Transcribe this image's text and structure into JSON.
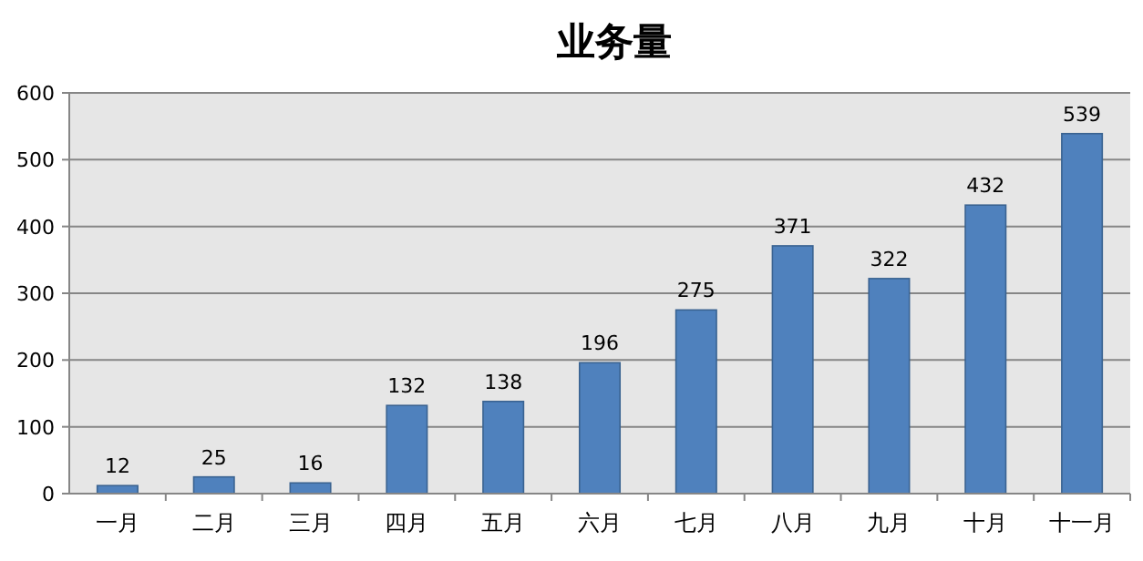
{
  "chart_data": {
    "type": "bar",
    "title": "业务量",
    "categories": [
      "一月",
      "二月",
      "三月",
      "四月",
      "五月",
      "六月",
      "七月",
      "八月",
      "九月",
      "十月",
      "十一月"
    ],
    "values": [
      12,
      25,
      16,
      132,
      138,
      196,
      275,
      371,
      322,
      432,
      539
    ],
    "color": "#4f81bd",
    "ylim": [
      0,
      600
    ],
    "yticks": [
      0,
      100,
      200,
      300,
      400,
      500,
      600
    ],
    "grid": "y",
    "data_labels": true
  }
}
